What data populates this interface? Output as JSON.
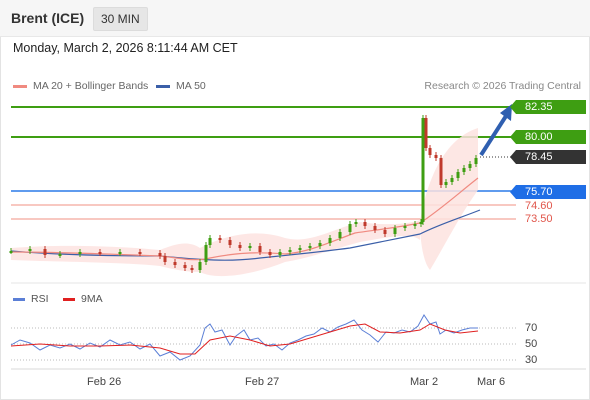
{
  "header": {
    "instrument": "Brent (ICE)",
    "timeframe": "30 MIN"
  },
  "datetime": "Monday, March 2, 2026 8:11:44 AM CET",
  "legend": {
    "ma20": {
      "label": "MA 20 + Bollinger Bands",
      "color": "#f08a80"
    },
    "ma50": {
      "label": "MA 50",
      "color": "#3b5fa8"
    },
    "credit": "Research © 2026 Trading Central"
  },
  "levels": {
    "r2": {
      "label": "82.35",
      "color": "#3e9e12"
    },
    "r1": {
      "label": "80.00",
      "color": "#3e9e12"
    },
    "current": {
      "label": "78.45",
      "color": "#333333"
    },
    "pivot": {
      "label": "75.70",
      "color": "#1f6ee6"
    },
    "s1": {
      "label": "74.60",
      "color": "#e0554a"
    },
    "s2": {
      "label": "73.50",
      "color": "#e0554a"
    }
  },
  "rsi": {
    "legend_rsi": "RSI",
    "legend_ma": "9MA",
    "rsi_color": "#5b7fd6",
    "ma_color": "#e02020",
    "levels": [
      "70",
      "50",
      "30"
    ]
  },
  "xaxis": {
    "labels": [
      "Feb 26",
      "Feb 27",
      "Mar 2",
      "Mar 6"
    ]
  }
}
